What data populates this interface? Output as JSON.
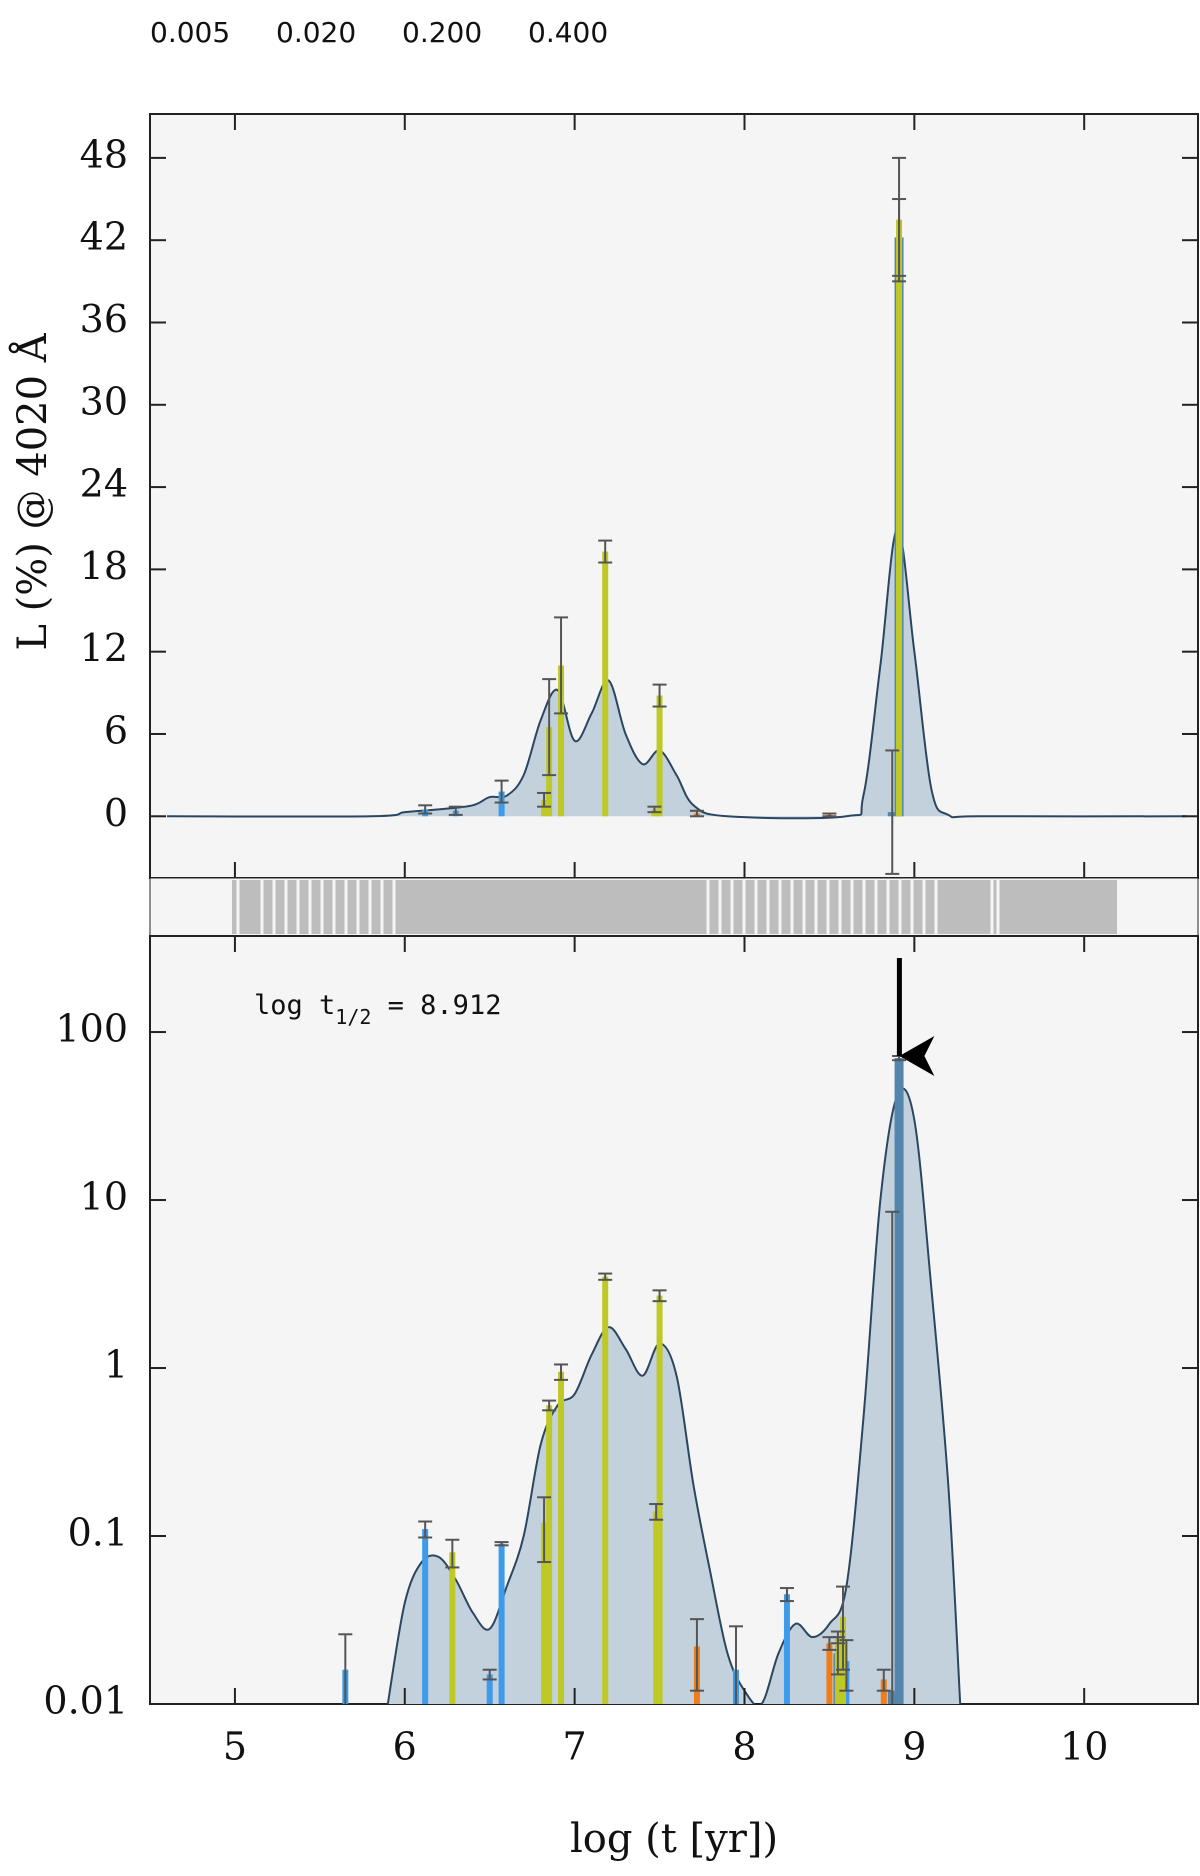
{
  "chart_data": [
    {
      "type": "bar",
      "ylabel": "L (%) @ 4020 Å",
      "xlim": [
        4.5,
        10.67
      ],
      "xticks": [
        5,
        6,
        7,
        8,
        9,
        10
      ],
      "ylim": [
        -4.5,
        51.2
      ],
      "yticks": [
        0,
        6,
        12,
        18,
        24,
        30,
        36,
        42,
        48
      ],
      "curve": {
        "color": "#2c4660",
        "fill": "#c3d1dd",
        "x": [
          4.6,
          5.8,
          6.0,
          6.2,
          6.4,
          6.5,
          6.6,
          6.7,
          6.8,
          6.9,
          7.0,
          7.1,
          7.2,
          7.3,
          7.4,
          7.5,
          7.6,
          7.7,
          7.9,
          8.6,
          8.7,
          8.8,
          8.9,
          9.0,
          9.1,
          9.2,
          9.4,
          10.6
        ],
        "values": [
          0,
          0,
          0.3,
          0.5,
          0.8,
          1.4,
          1.5,
          3,
          7,
          9.2,
          5.5,
          7.5,
          9.9,
          6,
          3.8,
          4.8,
          3,
          0.8,
          0,
          0,
          1.5,
          11,
          21,
          12,
          2,
          0.1,
          0,
          0
        ]
      },
      "series": [
        {
          "name": "0.005",
          "color": "#3d9be9",
          "x": [
            6.12,
            6.3,
            6.57
          ],
          "values": [
            0.5,
            0.4,
            1.8
          ],
          "errors": [
            0.3,
            0.3,
            0.8
          ]
        },
        {
          "name": "0.020",
          "color": "#5486ab",
          "x": [
            8.87,
            8.91
          ],
          "values": [
            0.3,
            42.2
          ],
          "errors": [
            4.5,
            2.8
          ]
        },
        {
          "name": "0.200",
          "color": "#bfc925",
          "x": [
            6.82,
            6.85,
            6.92,
            7.18,
            7.47,
            7.5,
            8.91
          ],
          "values": [
            1.2,
            6.5,
            11,
            19.3,
            0.5,
            8.8,
            43.5
          ],
          "errors": [
            0.5,
            3.5,
            3.5,
            0.8,
            0.2,
            0.8,
            4.5
          ]
        },
        {
          "name": "0.400",
          "color": "#f07d1a",
          "x": [
            7.72,
            8.5
          ],
          "values": [
            0.2,
            0.1
          ],
          "errors": [
            0.2,
            0.1
          ]
        }
      ]
    },
    {
      "type": "bar",
      "log_y": true,
      "xlabel": "log (t [yr])",
      "xlim": [
        4.5,
        10.67
      ],
      "xticks": [
        5,
        6,
        7,
        8,
        9,
        10
      ],
      "ylim": [
        0.01,
        373
      ],
      "yticks": [
        0.01,
        0.1,
        1,
        10,
        100
      ],
      "annotation": {
        "parts": [
          "log t",
          "1/2",
          " = 8.912"
        ],
        "x": 8.912
      },
      "curve": {
        "color": "#2c4660",
        "fill": "#c3d1dd",
        "x": [
          5.9,
          6.0,
          6.1,
          6.2,
          6.3,
          6.4,
          6.5,
          6.6,
          6.7,
          6.8,
          6.9,
          7.0,
          7.1,
          7.2,
          7.3,
          7.4,
          7.5,
          7.6,
          7.7,
          7.8,
          7.9,
          8.0,
          8.1,
          8.2,
          8.3,
          8.4,
          8.5,
          8.6,
          8.7,
          8.8,
          8.9,
          9.0,
          9.1,
          9.2,
          9.27
        ],
        "values": [
          0.01,
          0.04,
          0.07,
          0.075,
          0.055,
          0.035,
          0.028,
          0.05,
          0.1,
          0.35,
          0.6,
          0.7,
          1.2,
          1.75,
          1.3,
          0.9,
          1.4,
          0.9,
          0.2,
          0.06,
          0.02,
          0.012,
          0.01,
          0.02,
          0.03,
          0.025,
          0.03,
          0.05,
          0.5,
          10,
          42,
          30,
          3,
          0.2,
          0.01
        ]
      },
      "series": [
        {
          "color": "#3d9be9",
          "x": [
            5.65,
            6.12,
            6.5,
            6.57,
            7.95,
            8.25,
            8.6
          ],
          "values": [
            0.016,
            0.11,
            0.015,
            0.09,
            0.016,
            0.045,
            0.018
          ],
          "errors": [
            0.01,
            0.012,
            0.001,
            0.002,
            0.013,
            0.004,
            0.006
          ]
        },
        {
          "color": "#5486ab",
          "x": [
            8.55,
            8.87,
            8.91
          ],
          "values": [
            0.02,
            0.012,
            70
          ],
          "errors": [
            0.005,
            8.5,
            2
          ]
        },
        {
          "color": "#bfc925",
          "x": [
            6.28,
            6.82,
            6.85,
            6.92,
            7.18,
            7.48,
            7.5,
            8.55,
            8.58
          ],
          "values": [
            0.08,
            0.12,
            0.6,
            0.95,
            3.5,
            0.14,
            2.7,
            0.025,
            0.033
          ],
          "errors": [
            0.015,
            0.05,
            0.04,
            0.1,
            0.15,
            0.015,
            0.2,
            0.002,
            0.017
          ]
        },
        {
          "color": "#f07d1a",
          "x": [
            7.72,
            8.5,
            8.82
          ],
          "values": [
            0.022,
            0.023,
            0.014
          ],
          "errors": [
            0.01,
            0.002,
            0.002
          ]
        }
      ]
    }
  ]
}
